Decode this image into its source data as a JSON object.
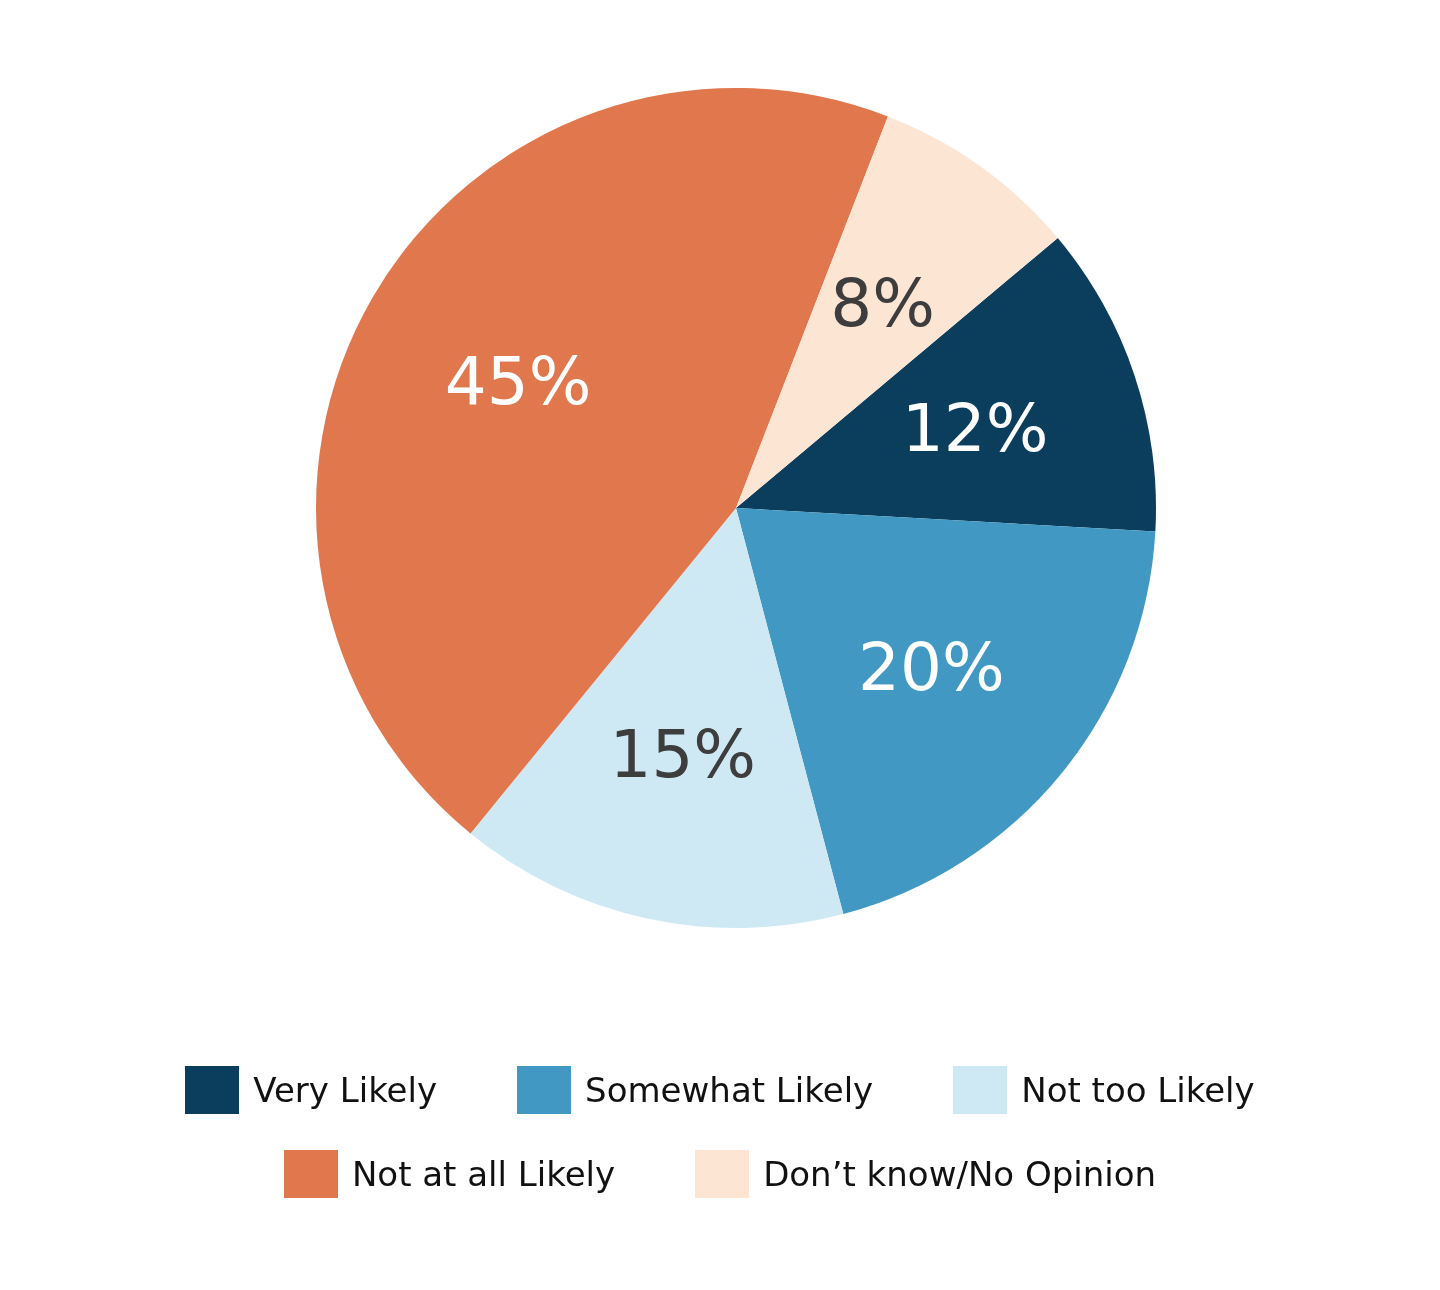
{
  "chart_data": {
    "type": "pie",
    "categories": [
      "Very Likely",
      "Somewhat Likely",
      "Not too Likely",
      "Not at all Likely",
      "Don’t know/No Opinion"
    ],
    "values": [
      12,
      20,
      15,
      45,
      8
    ],
    "colors": [
      "#0b3d5c",
      "#4199c3",
      "#cfe9f4",
      "#e0774d",
      "#fde5d4"
    ],
    "value_labels": [
      "12%",
      "20%",
      "15%",
      "45%",
      "8%"
    ],
    "legend": "bottom"
  }
}
